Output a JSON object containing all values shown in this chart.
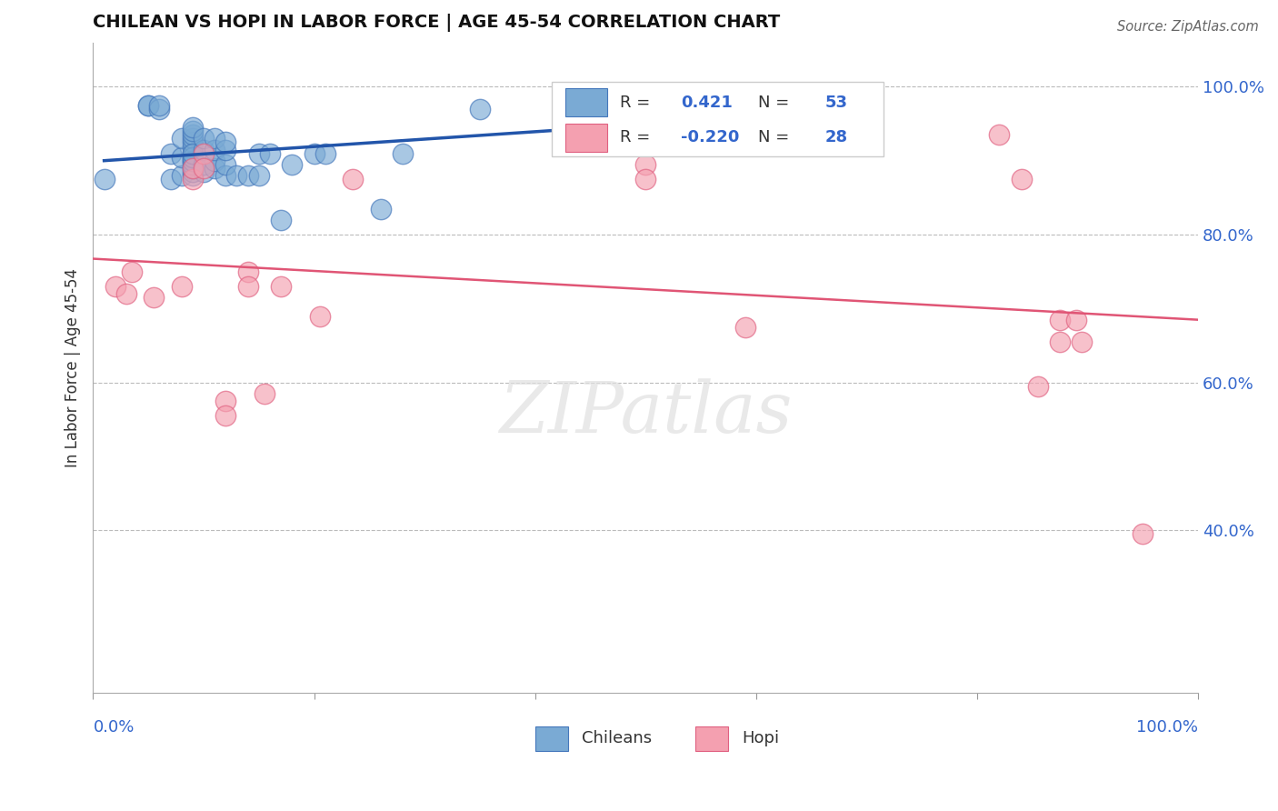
{
  "title": "CHILEAN VS HOPI IN LABOR FORCE | AGE 45-54 CORRELATION CHART",
  "source": "Source: ZipAtlas.com",
  "ylabel_label": "In Labor Force | Age 45-54",
  "watermark": "ZIPatlas",
  "xlim": [
    0.0,
    1.0
  ],
  "ylim": [
    0.18,
    1.06
  ],
  "y_tick_positions": [
    0.4,
    0.6,
    0.8,
    1.0
  ],
  "y_tick_labels_right": [
    "40.0%",
    "60.0%",
    "80.0%",
    "100.0%"
  ],
  "legend_blue_r": "0.421",
  "legend_blue_n": "53",
  "legend_pink_r": "-0.220",
  "legend_pink_n": "28",
  "blue_color": "#7aaad4",
  "pink_color": "#f4a0b0",
  "blue_edge_color": "#4477bb",
  "pink_edge_color": "#e06080",
  "blue_line_color": "#2255aa",
  "pink_line_color": "#e05575",
  "grid_color": "#bbbbbb",
  "title_color": "#111111",
  "axis_label_color": "#3366cc",
  "legend_r_color": "#333333",
  "legend_n_color": "#3366cc",
  "chileans_x": [
    0.01,
    0.05,
    0.05,
    0.06,
    0.06,
    0.07,
    0.07,
    0.08,
    0.08,
    0.08,
    0.09,
    0.09,
    0.09,
    0.09,
    0.09,
    0.09,
    0.09,
    0.09,
    0.09,
    0.09,
    0.09,
    0.09,
    0.09,
    0.09,
    0.09,
    0.09,
    0.1,
    0.1,
    0.1,
    0.1,
    0.11,
    0.11,
    0.11,
    0.11,
    0.12,
    0.12,
    0.12,
    0.12,
    0.13,
    0.14,
    0.15,
    0.15,
    0.16,
    0.17,
    0.18,
    0.2,
    0.21,
    0.26,
    0.28,
    0.35,
    0.43,
    0.43,
    0.43
  ],
  "chileans_y": [
    0.875,
    0.975,
    0.975,
    0.97,
    0.975,
    0.875,
    0.91,
    0.88,
    0.905,
    0.93,
    0.88,
    0.885,
    0.89,
    0.895,
    0.9,
    0.905,
    0.91,
    0.92,
    0.925,
    0.93,
    0.935,
    0.94,
    0.945,
    0.9,
    0.905,
    0.91,
    0.885,
    0.895,
    0.915,
    0.93,
    0.89,
    0.9,
    0.915,
    0.93,
    0.88,
    0.895,
    0.915,
    0.925,
    0.88,
    0.88,
    0.88,
    0.91,
    0.91,
    0.82,
    0.895,
    0.91,
    0.91,
    0.835,
    0.91,
    0.97,
    0.975,
    0.98,
    0.975
  ],
  "hopi_x": [
    0.02,
    0.03,
    0.035,
    0.055,
    0.08,
    0.09,
    0.09,
    0.1,
    0.1,
    0.12,
    0.12,
    0.14,
    0.14,
    0.155,
    0.17,
    0.205,
    0.235,
    0.5,
    0.5,
    0.59,
    0.82,
    0.84,
    0.855,
    0.875,
    0.875,
    0.89,
    0.895,
    0.95
  ],
  "hopi_y": [
    0.73,
    0.72,
    0.75,
    0.715,
    0.73,
    0.875,
    0.89,
    0.91,
    0.89,
    0.575,
    0.555,
    0.75,
    0.73,
    0.585,
    0.73,
    0.69,
    0.875,
    0.895,
    0.875,
    0.675,
    0.935,
    0.875,
    0.595,
    0.685,
    0.655,
    0.685,
    0.655,
    0.395
  ]
}
